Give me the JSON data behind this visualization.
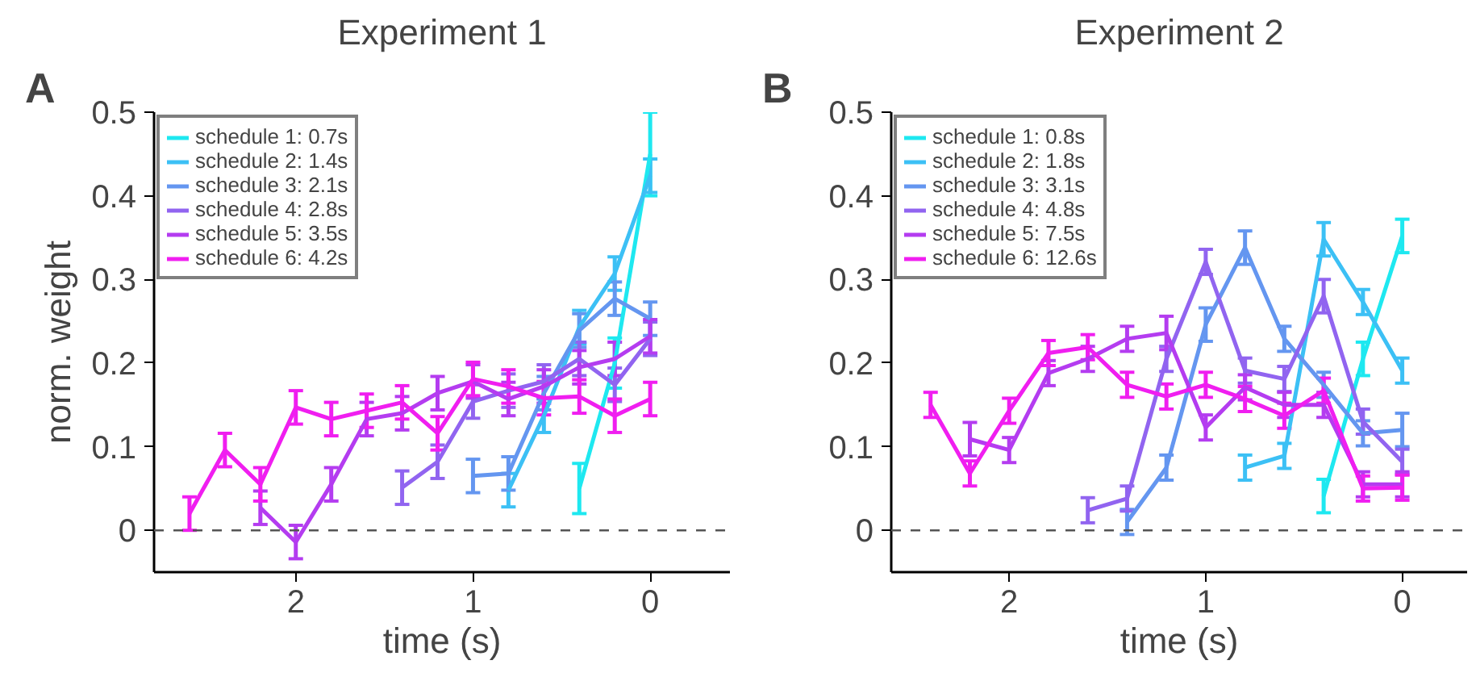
{
  "chart_data": [
    {
      "type": "line",
      "title": "Experiment 1",
      "annotations": [
        "A"
      ],
      "xlabel": "time (s)",
      "ylabel": "norm. weight",
      "xlim": [
        2.8,
        -0.45
      ],
      "xticks": [
        2,
        1,
        0
      ],
      "ylim": [
        -0.05,
        0.5
      ],
      "yticks": [
        0,
        0.1,
        0.2,
        0.3,
        0.4,
        0.5
      ],
      "grid": false,
      "legend": "top left",
      "line_style": "solid",
      "ref_lines": [
        {
          "axis": "y",
          "value": 0,
          "color": "#555555",
          "line_style": "dashed"
        }
      ],
      "series": [
        {
          "name": "schedule 1: 0.7s",
          "color": "#1ee8f0",
          "x": [
            0.4,
            0.2,
            0
          ],
          "values": [
            0.05,
            0.2,
            0.45
          ],
          "errors": [
            0.03,
            0.03,
            0.05
          ]
        },
        {
          "name": "schedule 2: 1.4s",
          "color": "#3cc0f5",
          "x": [
            0.8,
            0.6,
            0.4,
            0.2,
            0
          ],
          "values": [
            0.048,
            0.137,
            0.243,
            0.307,
            0.424
          ],
          "errors": [
            0.02,
            0.02,
            0.02,
            0.02,
            0.02
          ]
        },
        {
          "name": "schedule 3: 2.1s",
          "color": "#6496f0",
          "x": [
            1.0,
            0.8,
            0.6,
            0.4,
            0.2,
            0
          ],
          "values": [
            0.065,
            0.068,
            0.164,
            0.239,
            0.277,
            0.253
          ],
          "errors": [
            0.02,
            0.02,
            0.02,
            0.02,
            0.02,
            0.02
          ]
        },
        {
          "name": "schedule 4: 2.8s",
          "color": "#9164f0",
          "x": [
            1.4,
            1.2,
            1.0,
            0.8,
            0.6,
            0.4,
            0.2,
            0
          ],
          "values": [
            0.051,
            0.082,
            0.154,
            0.167,
            0.178,
            0.205,
            0.174,
            0.229
          ],
          "errors": [
            0.02,
            0.02,
            0.02,
            0.02,
            0.02,
            0.02,
            0.02,
            0.02
          ]
        },
        {
          "name": "schedule 5: 3.5s",
          "color": "#b43cf0",
          "x": [
            2.2,
            2.0,
            1.8,
            1.6,
            1.4,
            1.2,
            1.0,
            0.8,
            0.6,
            0.4,
            0.2,
            0
          ],
          "values": [
            0.027,
            -0.014,
            0.055,
            0.133,
            0.14,
            0.164,
            0.178,
            0.157,
            0.172,
            0.195,
            0.205,
            0.232
          ],
          "errors": [
            0.02,
            0.02,
            0.02,
            0.02,
            0.02,
            0.02,
            0.02,
            0.02,
            0.02,
            0.02,
            0.02,
            0.02
          ]
        },
        {
          "name": "schedule 6: 4.2s",
          "color": "#f01ef0",
          "x": [
            2.6,
            2.4,
            2.2,
            2.0,
            1.8,
            1.6,
            1.4,
            1.2,
            1.0,
            0.8,
            0.6,
            0.4,
            0.2,
            0
          ],
          "values": [
            0.02,
            0.096,
            0.055,
            0.147,
            0.133,
            0.143,
            0.153,
            0.116,
            0.181,
            0.172,
            0.158,
            0.16,
            0.137,
            0.157
          ],
          "errors": [
            0.02,
            0.02,
            0.02,
            0.02,
            0.02,
            0.02,
            0.02,
            0.02,
            0.02,
            0.02,
            0.02,
            0.02,
            0.02,
            0.02
          ]
        }
      ]
    },
    {
      "type": "line",
      "title": "Experiment 2",
      "annotations": [
        "B"
      ],
      "xlabel": "time (s)",
      "xlim": [
        2.6,
        -0.33
      ],
      "xticks": [
        2,
        1,
        0
      ],
      "ylim": [
        -0.05,
        0.5
      ],
      "yticks": [
        0,
        0.1,
        0.2,
        0.3,
        0.4,
        0.5
      ],
      "grid": false,
      "legend": "top left",
      "line_style": "solid",
      "ref_lines": [
        {
          "axis": "y",
          "value": 0,
          "color": "#555555",
          "line_style": "dashed"
        }
      ],
      "series": [
        {
          "name": "schedule 1: 0.8s",
          "color": "#1ee8f0",
          "x": [
            0.4,
            0.2,
            0
          ],
          "values": [
            0.041,
            0.205,
            0.352
          ],
          "errors": [
            0.02,
            0.02,
            0.02
          ]
        },
        {
          "name": "schedule 2: 1.8s",
          "color": "#3cc0f5",
          "x": [
            0.8,
            0.6,
            0.4,
            0.2,
            0
          ],
          "values": [
            0.075,
            0.089,
            0.348,
            0.273,
            0.191
          ],
          "errors": [
            0.015,
            0.015,
            0.02,
            0.015,
            0.015
          ]
        },
        {
          "name": "schedule 3: 3.1s",
          "color": "#6496f0",
          "x": [
            1.4,
            1.2,
            1.0,
            0.8,
            0.6,
            0.4,
            0.2,
            0
          ],
          "values": [
            0.01,
            0.075,
            0.246,
            0.338,
            0.229,
            0.174,
            0.116,
            0.12
          ],
          "errors": [
            0.015,
            0.015,
            0.02,
            0.02,
            0.015,
            0.015,
            0.015,
            0.02
          ]
        },
        {
          "name": "schedule 4: 4.8s",
          "color": "#9164f0",
          "x": [
            1.6,
            1.4,
            1.2,
            1.0,
            0.8,
            0.6,
            0.4,
            0.2,
            0
          ],
          "values": [
            0.024,
            0.038,
            0.205,
            0.321,
            0.191,
            0.181,
            0.28,
            0.13,
            0.082
          ],
          "errors": [
            0.015,
            0.015,
            0.015,
            0.015,
            0.015,
            0.015,
            0.02,
            0.015,
            0.015
          ]
        },
        {
          "name": "schedule 5: 7.5s",
          "color": "#b43cf0",
          "x": [
            2.2,
            2.0,
            1.8,
            1.6,
            1.4,
            1.2,
            1.0,
            0.8,
            0.6,
            0.4,
            0.2,
            0
          ],
          "values": [
            0.109,
            0.096,
            0.188,
            0.205,
            0.229,
            0.236,
            0.123,
            0.171,
            0.15,
            0.15,
            0.055,
            0.055
          ],
          "errors": [
            0.02,
            0.015,
            0.015,
            0.015,
            0.015,
            0.02,
            0.015,
            0.015,
            0.015,
            0.015,
            0.015,
            0.015
          ]
        },
        {
          "name": "schedule 6: 12.6s",
          "color": "#f01ef0",
          "x": [
            2.4,
            2.2,
            2.0,
            1.8,
            1.6,
            1.4,
            1.2,
            1.0,
            0.8,
            0.6,
            0.4,
            0.2,
            0
          ],
          "values": [
            0.15,
            0.068,
            0.143,
            0.212,
            0.219,
            0.174,
            0.16,
            0.174,
            0.157,
            0.137,
            0.167,
            0.05,
            0.051
          ],
          "errors": [
            0.015,
            0.015,
            0.015,
            0.015,
            0.015,
            0.015,
            0.015,
            0.015,
            0.015,
            0.015,
            0.015,
            0.015,
            0.015
          ]
        }
      ]
    }
  ]
}
